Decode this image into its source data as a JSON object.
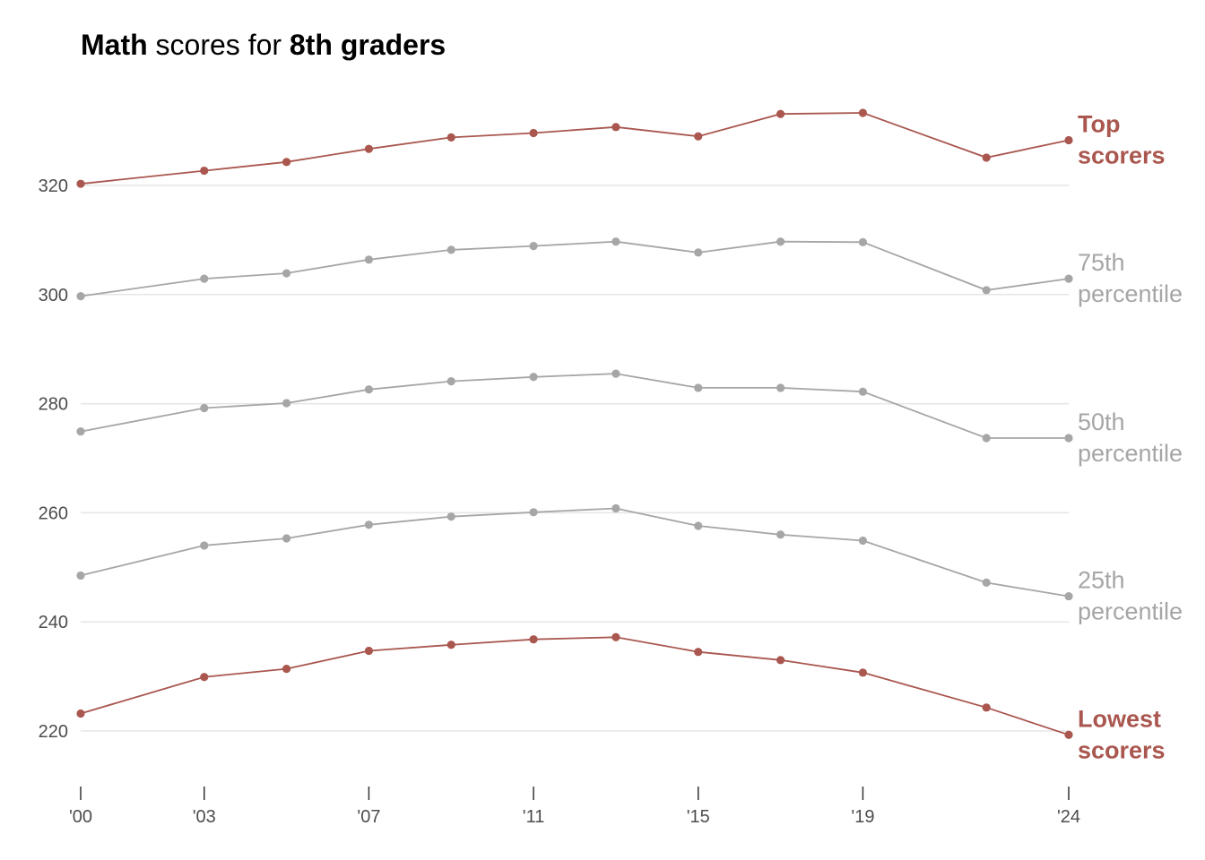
{
  "title": {
    "part1": "Math",
    "part2": " scores for ",
    "part3": "8th graders"
  },
  "colors": {
    "highlight": "#a9574f",
    "muted": "#a6a6a6",
    "grid": "#e5e5e5",
    "tick_text": "#4d4d4d"
  },
  "chart_data": {
    "type": "line",
    "x": [
      2000,
      2003,
      2005,
      2007,
      2009,
      2011,
      2013,
      2015,
      2017,
      2019,
      2022,
      2024
    ],
    "xticks": [
      {
        "value": 2000,
        "label": "'00"
      },
      {
        "value": 2003,
        "label": "'03"
      },
      {
        "value": 2007,
        "label": "'07"
      },
      {
        "value": 2011,
        "label": "'11"
      },
      {
        "value": 2015,
        "label": "'15"
      },
      {
        "value": 2019,
        "label": "'19"
      },
      {
        "value": 2024,
        "label": "'24"
      }
    ],
    "yticks": [
      220,
      240,
      260,
      280,
      300,
      320
    ],
    "ylim": [
      210,
      336
    ],
    "grid": "horizontal",
    "series": [
      {
        "name": "Top scorers",
        "label_lines": [
          "Top",
          "scorers"
        ],
        "highlight": true,
        "values": [
          320.3,
          322.7,
          324.3,
          326.7,
          328.8,
          329.6,
          330.7,
          329.0,
          333.1,
          333.3,
          325.1,
          328.3
        ]
      },
      {
        "name": "75th percentile",
        "label_lines": [
          "75th",
          "percentile"
        ],
        "highlight": false,
        "values": [
          299.7,
          302.9,
          303.9,
          306.4,
          308.2,
          308.9,
          309.7,
          307.7,
          309.7,
          309.6,
          300.8,
          302.9
        ]
      },
      {
        "name": "50th percentile",
        "label_lines": [
          "50th",
          "percentile"
        ],
        "highlight": false,
        "values": [
          274.9,
          279.2,
          280.1,
          282.6,
          284.1,
          284.9,
          285.5,
          282.9,
          282.9,
          282.2,
          273.7,
          273.7
        ]
      },
      {
        "name": "25th percentile",
        "label_lines": [
          "25th",
          "percentile"
        ],
        "highlight": false,
        "values": [
          248.5,
          254.0,
          255.3,
          257.8,
          259.3,
          260.1,
          260.8,
          257.6,
          256.0,
          254.9,
          247.2,
          244.7
        ]
      },
      {
        "name": "Lowest scorers",
        "label_lines": [
          "Lowest",
          "scorers"
        ],
        "highlight": true,
        "values": [
          223.2,
          229.9,
          231.4,
          234.7,
          235.8,
          236.8,
          237.2,
          234.5,
          233.0,
          230.7,
          224.3,
          219.3
        ]
      }
    ]
  }
}
